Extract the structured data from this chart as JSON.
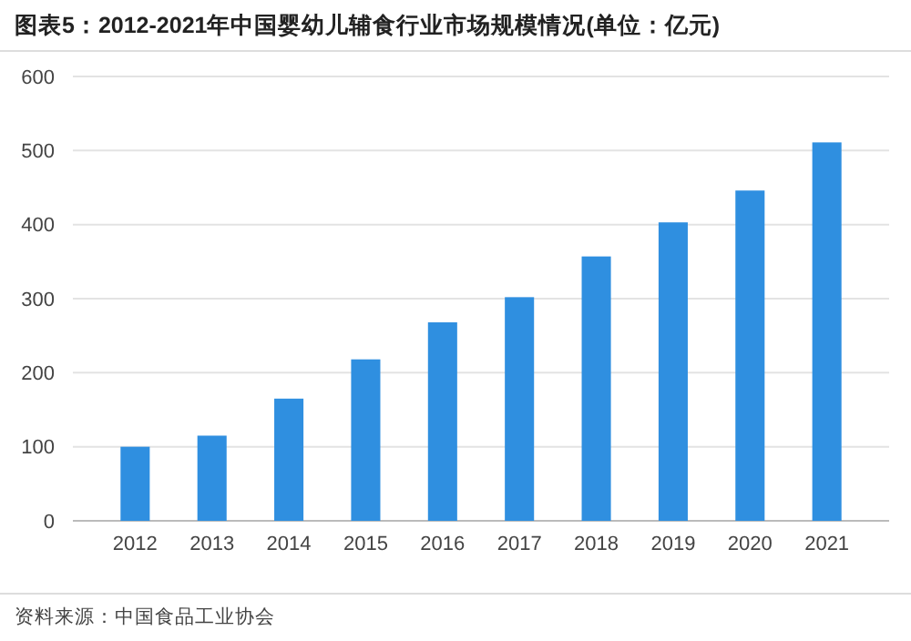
{
  "chart_data": {
    "type": "bar",
    "title": "图表5：2012-2021年中国婴幼儿辅食行业市场规模情况(单位：亿元)",
    "categories": [
      "2012",
      "2013",
      "2014",
      "2015",
      "2016",
      "2017",
      "2018",
      "2019",
      "2020",
      "2021"
    ],
    "values": [
      100,
      115,
      165,
      218,
      268,
      302,
      357,
      403,
      446,
      511
    ],
    "color": "#2f8fe0",
    "ylim": [
      0,
      600
    ],
    "yticks": [
      0,
      100,
      200,
      300,
      400,
      500,
      600
    ],
    "grid": "y",
    "annotations": [
      "资料来源：中国食品工业协会"
    ]
  }
}
